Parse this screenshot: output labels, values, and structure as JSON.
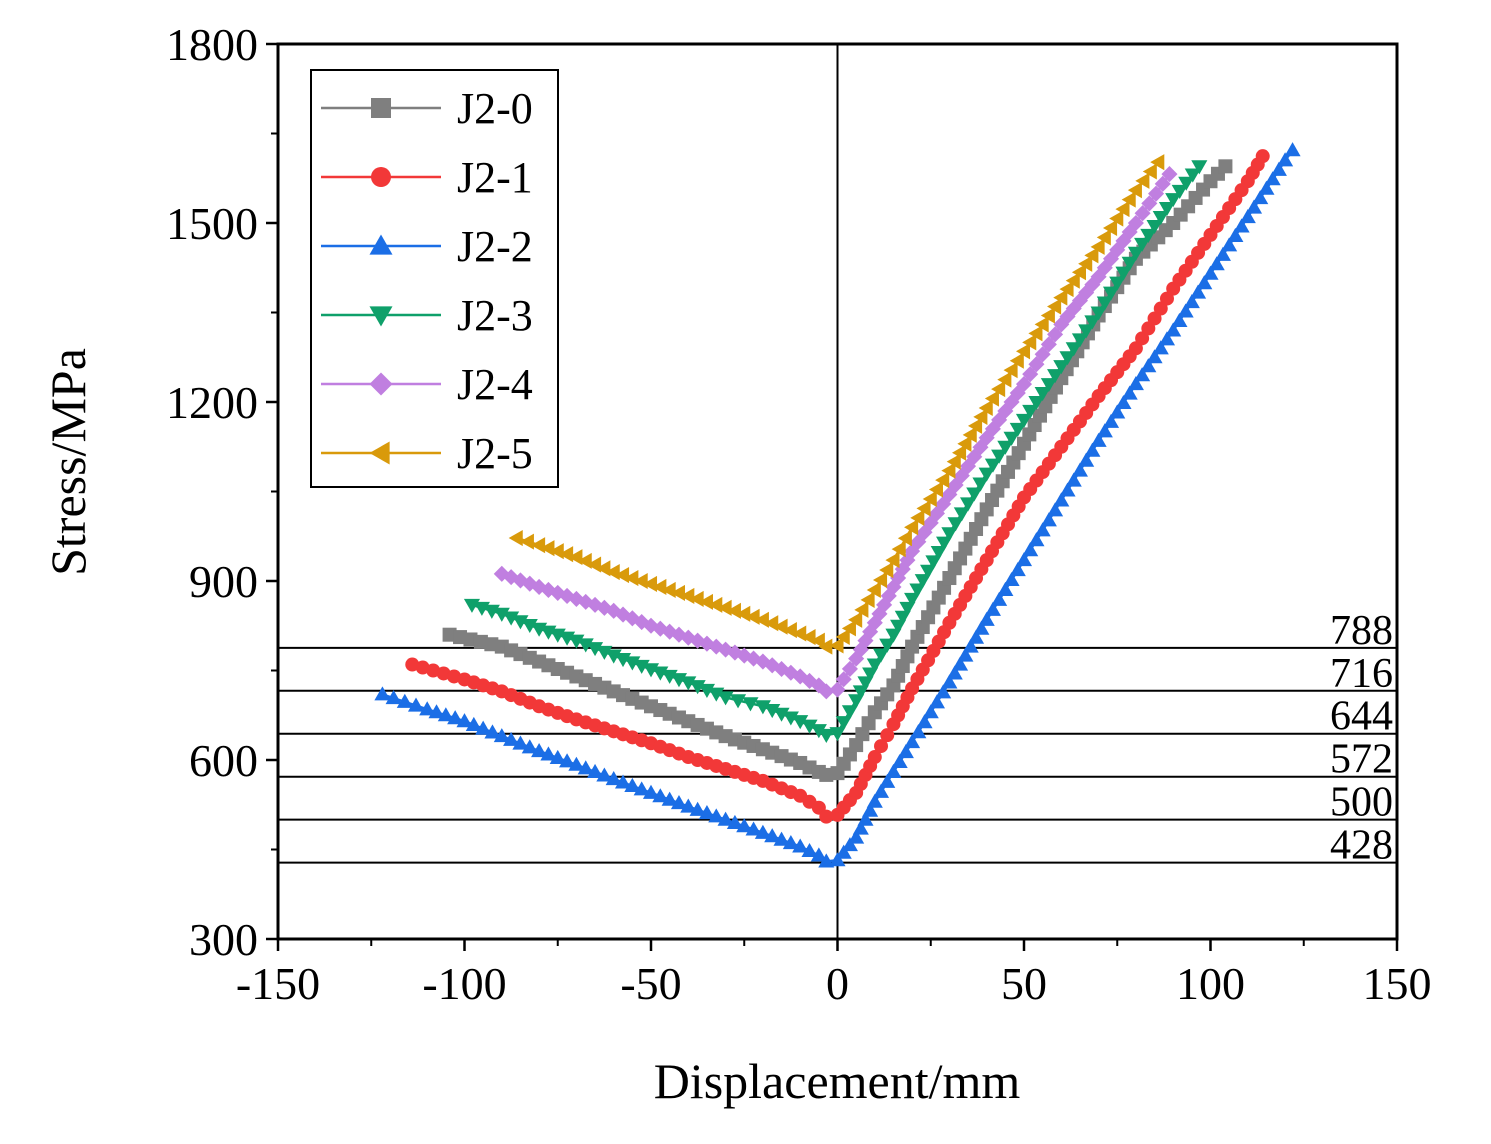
{
  "chart_data": {
    "type": "line",
    "title": "",
    "xlabel": "Displacement/mm",
    "ylabel": "Stress/MPa",
    "xlim": [
      -150,
      150
    ],
    "ylim": [
      300,
      1800
    ],
    "x_ticks": [
      -150,
      -100,
      -50,
      0,
      50,
      100,
      150
    ],
    "y_ticks": [
      300,
      600,
      900,
      1200,
      1500,
      1800
    ],
    "x_tick_labels": [
      "-150",
      "-100",
      "-50",
      "0",
      "50",
      "100",
      "150"
    ],
    "y_tick_labels": [
      "300",
      "600",
      "900",
      "1200",
      "1500",
      "1800"
    ],
    "legend_position": "top-left",
    "vertical_reference_x": 0,
    "reference_lines": [
      {
        "value": 788,
        "label": "788"
      },
      {
        "value": 716,
        "label": "716"
      },
      {
        "value": 644,
        "label": "644"
      },
      {
        "value": 572,
        "label": "572"
      },
      {
        "value": 500,
        "label": "500"
      },
      {
        "value": 428,
        "label": "428"
      }
    ],
    "series": [
      {
        "name": "J2-0",
        "color": "#7f7f7f",
        "marker": "square",
        "x": [
          -104,
          -90,
          -80,
          -70,
          -60,
          -50,
          -40,
          -30,
          -20,
          -10,
          -5,
          -3,
          0,
          5,
          10,
          15,
          20,
          30,
          40,
          50,
          60,
          70,
          80,
          90,
          100,
          104
        ],
        "y": [
          810,
          790,
          765,
          740,
          715,
          690,
          665,
          640,
          618,
          595,
          580,
          575,
          578,
          625,
          680,
          725,
          790,
          905,
          1020,
          1130,
          1240,
          1345,
          1440,
          1500,
          1570,
          1595
        ]
      },
      {
        "name": "J2-1",
        "color": "#f23838",
        "marker": "circle",
        "x": [
          -114,
          -100,
          -90,
          -80,
          -70,
          -60,
          -50,
          -40,
          -30,
          -20,
          -10,
          -5,
          -3,
          0,
          5,
          10,
          15,
          20,
          30,
          40,
          50,
          60,
          70,
          80,
          90,
          100,
          110,
          114
        ],
        "y": [
          760,
          735,
          715,
          690,
          668,
          648,
          628,
          605,
          585,
          565,
          540,
          520,
          505,
          508,
          545,
          605,
          660,
          720,
          830,
          935,
          1040,
          1125,
          1210,
          1290,
          1390,
          1480,
          1570,
          1612
        ]
      },
      {
        "name": "J2-2",
        "color": "#1b6ee6",
        "marker": "triangle-up",
        "x": [
          -122,
          -110,
          -100,
          -90,
          -80,
          -70,
          -60,
          -50,
          -40,
          -30,
          -20,
          -10,
          -5,
          -3,
          0,
          5,
          10,
          20,
          30,
          40,
          50,
          60,
          70,
          80,
          90,
          100,
          110,
          120,
          122
        ],
        "y": [
          710,
          685,
          665,
          640,
          615,
          592,
          568,
          545,
          522,
          500,
          478,
          455,
          440,
          430,
          432,
          470,
          530,
          630,
          730,
          835,
          935,
          1035,
          1135,
          1230,
          1320,
          1415,
          1510,
          1605,
          1622
        ]
      },
      {
        "name": "J2-3",
        "color": "#0fa06a",
        "marker": "triangle-down",
        "x": [
          -98,
          -90,
          -80,
          -70,
          -60,
          -50,
          -40,
          -30,
          -20,
          -10,
          -5,
          -3,
          0,
          5,
          10,
          15,
          20,
          30,
          40,
          50,
          60,
          70,
          80,
          90,
          97
        ],
        "y": [
          860,
          845,
          820,
          800,
          775,
          752,
          730,
          705,
          690,
          665,
          650,
          642,
          645,
          700,
          760,
          810,
          870,
          980,
          1080,
          1170,
          1260,
          1350,
          1450,
          1540,
          1595
        ]
      },
      {
        "name": "J2-4",
        "color": "#c07fe0",
        "marker": "diamond",
        "x": [
          -90,
          -80,
          -70,
          -60,
          -50,
          -40,
          -30,
          -20,
          -10,
          -5,
          -3,
          0,
          5,
          10,
          15,
          20,
          30,
          40,
          50,
          60,
          70,
          80,
          89
        ],
        "y": [
          912,
          890,
          870,
          850,
          825,
          805,
          785,
          765,
          740,
          725,
          715,
          718,
          770,
          830,
          890,
          950,
          1045,
          1140,
          1230,
          1330,
          1410,
          1500,
          1582
        ]
      },
      {
        "name": "J2-5",
        "color": "#d99a0b",
        "marker": "triangle-left",
        "x": [
          -86,
          -80,
          -70,
          -60,
          -50,
          -40,
          -30,
          -20,
          -10,
          -5,
          -3,
          0,
          5,
          10,
          15,
          20,
          30,
          40,
          50,
          60,
          70,
          80,
          86
        ],
        "y": [
          972,
          960,
          940,
          915,
          895,
          875,
          855,
          835,
          812,
          800,
          790,
          792,
          835,
          885,
          935,
          990,
          1085,
          1190,
          1285,
          1375,
          1460,
          1555,
          1602
        ]
      }
    ]
  }
}
